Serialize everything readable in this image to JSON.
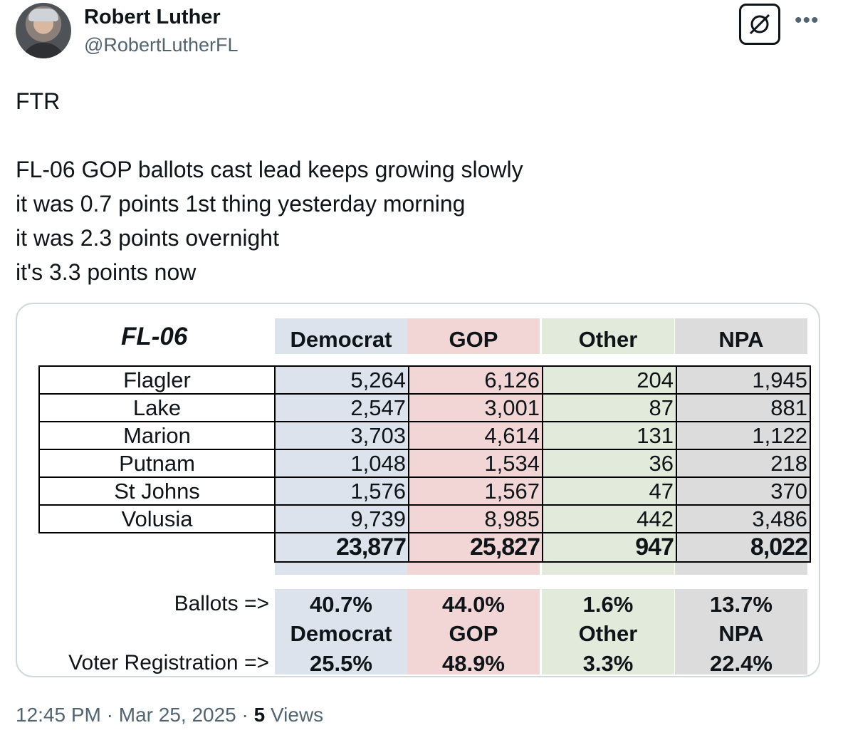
{
  "author": {
    "name": "Robert Luther",
    "handle": "@RobertLutherFL"
  },
  "icons": {
    "grok": "grok-icon",
    "more": "more-icon"
  },
  "tweet_text": "FTR\n\nFL-06 GOP ballots cast lead keeps growing slowly\nit was 0.7 points 1st thing yesterday morning\nit was 2.3 points overnight\nit's 3.3 points now",
  "table": {
    "title": "FL-06",
    "headers": [
      "Democrat",
      "GOP",
      "Other",
      "NPA"
    ],
    "colors": {
      "democrat": "#dde3ec",
      "gop": "#f2d6d6",
      "other": "#e2eadb",
      "npa": "#dcdcdc"
    },
    "rows": [
      {
        "county": "Flagler",
        "values": [
          "5,264",
          "6,126",
          "204",
          "1,945"
        ]
      },
      {
        "county": "Lake",
        "values": [
          "2,547",
          "3,001",
          "87",
          "881"
        ]
      },
      {
        "county": "Marion",
        "values": [
          "3,703",
          "4,614",
          "131",
          "1,122"
        ]
      },
      {
        "county": "Putnam",
        "values": [
          "1,048",
          "1,534",
          "36",
          "218"
        ]
      },
      {
        "county": "St Johns",
        "values": [
          "1,576",
          "1,567",
          "47",
          "370"
        ]
      },
      {
        "county": "Volusia",
        "values": [
          "9,739",
          "8,985",
          "442",
          "3,486"
        ]
      }
    ],
    "totals": [
      "23,877",
      "25,827",
      "947",
      "8,022"
    ],
    "ballots_label": "Ballots =>",
    "ballots_pct": [
      "40.7%",
      "44.0%",
      "1.6%",
      "13.7%"
    ],
    "party_labels": [
      "Democrat",
      "GOP",
      "Other",
      "NPA"
    ],
    "registration_label": "Voter Registration =>",
    "registration_pct": [
      "25.5%",
      "48.9%",
      "3.3%",
      "22.4%"
    ]
  },
  "footer": {
    "time": "12:45 PM",
    "sep1": "·",
    "date": "Mar 25, 2025",
    "sep2": "·",
    "views_count": "5",
    "views_label": "Views"
  }
}
